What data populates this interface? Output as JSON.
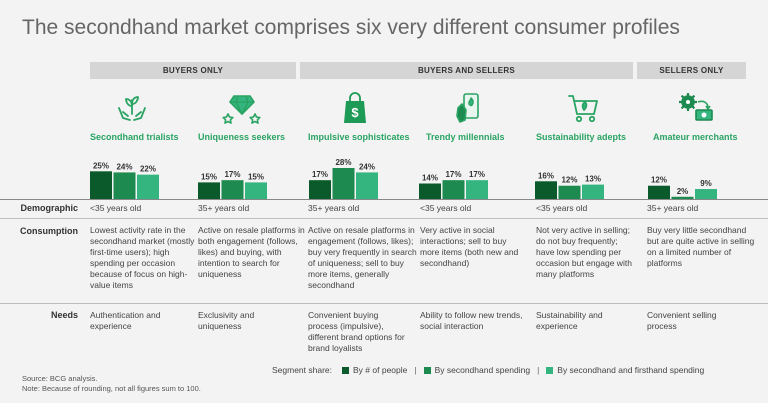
{
  "title": "The secondhand market comprises six very different consumer profiles",
  "groups": {
    "buyers_only": "BUYERS ONLY",
    "buyers_and_sellers": "BUYERS AND SELLERS",
    "sellers_only": "SELLERS ONLY"
  },
  "profiles": [
    {
      "name": "Secondhand trialists",
      "icon": "hands-plant-icon"
    },
    {
      "name": "Uniqueness seekers",
      "icon": "diamond-stars-icon"
    },
    {
      "name": "Impulsive sophisticates",
      "icon": "shopping-bag-dollar-icon"
    },
    {
      "name": "Trendy millennials",
      "icon": "phone-hand-icon"
    },
    {
      "name": "Sustainability adepts",
      "icon": "shopping-cart-icon"
    },
    {
      "name": "Amateur merchants",
      "icon": "gear-money-icon"
    }
  ],
  "row_labels": {
    "demographic": "Demographic",
    "consumption": "Consumption",
    "needs": "Needs"
  },
  "demographic": [
    "<35 years old",
    "35+ years old",
    "35+ years old",
    "<35 years old",
    "<35 years old",
    "35+ years old"
  ],
  "consumption": [
    "Lowest activity rate in the secondhand market (mostly first-time users); high spending per occasion because of focus on high-value items",
    "Active on resale platforms in both engagement (follows, likes) and buying, with intention to search for uniqueness",
    "Active on resale platforms in engagement (follows, likes); buy very frequently in search of uniqueness; sell to buy more items, generally secondhand",
    "Very active in social interactions; sell to buy more items (both new and secondhand)",
    "Not very active in selling; do not buy frequently; have low spending per occasion but engage with many platforms",
    "Buy very little secondhand but are quite active in selling on a limited number of platforms"
  ],
  "needs": [
    "Authentication and experience",
    "Exclusivity and uniqueness",
    "Convenient buying process (impulsive), different brand options for brand loyalists",
    "Ability to follow new trends, social interaction",
    "Sustainability and experience",
    "Convenient selling process"
  ],
  "legend": {
    "prefix": "Segment share:",
    "items": [
      "By # of people",
      "By secondhand spending",
      "By secondhand and firsthand spending"
    ],
    "separator": "|"
  },
  "footnotes": {
    "source": "Source: BCG analysis.",
    "note": "Note: Because of rounding, not all figures sum to 100."
  },
  "colors": {
    "series": [
      "#0b5a2b",
      "#1d8a4f",
      "#34b580"
    ],
    "accent_text": "#2aa463",
    "band": "#d5d5d5"
  },
  "chart_data": {
    "type": "bar",
    "categories": [
      "Secondhand trialists",
      "Uniqueness seekers",
      "Impulsive sophisticates",
      "Trendy millennials",
      "Sustainability adepts",
      "Amateur merchants"
    ],
    "series": [
      {
        "name": "By # of people",
        "values": [
          25,
          15,
          17,
          14,
          16,
          12
        ]
      },
      {
        "name": "By secondhand spending",
        "values": [
          24,
          17,
          28,
          17,
          12,
          2
        ]
      },
      {
        "name": "By secondhand and firsthand spending",
        "values": [
          22,
          15,
          24,
          17,
          13,
          9
        ]
      }
    ],
    "value_labels": [
      [
        "25%",
        "24%",
        "22%"
      ],
      [
        "15%",
        "17%",
        "15%"
      ],
      [
        "17%",
        "28%",
        "24%"
      ],
      [
        "14%",
        "17%",
        "17%"
      ],
      [
        "16%",
        "12%",
        "13%"
      ],
      [
        "12%",
        "2%",
        "9%"
      ]
    ],
    "ylim": [
      0,
      28
    ],
    "grid": false
  }
}
